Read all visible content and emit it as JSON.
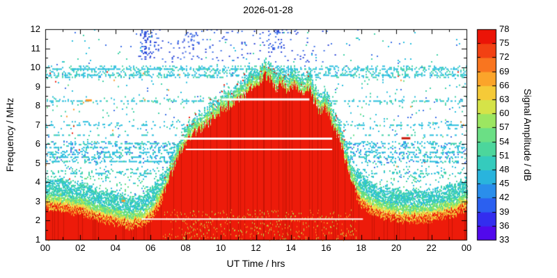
{
  "chart_data": {
    "type": "heatmap",
    "title": "2026-01-28",
    "xlabel": "UT Time / hrs",
    "ylabel": "Frequency / MHz",
    "colorbar_label": "Signal Amplitude / dB",
    "x_range": [
      0,
      24
    ],
    "y_range": [
      1,
      12
    ],
    "grid": false,
    "x_ticks": [
      "00",
      "02",
      "04",
      "06",
      "08",
      "10",
      "12",
      "14",
      "16",
      "18",
      "20",
      "22",
      "00"
    ],
    "y_ticks": [
      1,
      2,
      3,
      4,
      5,
      6,
      7,
      8,
      9,
      10,
      11,
      12
    ],
    "colorbar_range": [
      33,
      78
    ],
    "colorbar_ticks": [
      33,
      36,
      39,
      42,
      45,
      48,
      51,
      54,
      57,
      60,
      63,
      66,
      69,
      72,
      75,
      78
    ],
    "color_scale": [
      {
        "v": 33,
        "c": "#6a00e8"
      },
      {
        "v": 36,
        "c": "#3c10f0"
      },
      {
        "v": 39,
        "c": "#2b46ef"
      },
      {
        "v": 42,
        "c": "#2b77f0"
      },
      {
        "v": 45,
        "c": "#29a3e6"
      },
      {
        "v": 48,
        "c": "#29c3d6"
      },
      {
        "v": 51,
        "c": "#3fd2a8"
      },
      {
        "v": 54,
        "c": "#58da92"
      },
      {
        "v": 57,
        "c": "#7ce379"
      },
      {
        "v": 60,
        "c": "#b8e84c"
      },
      {
        "v": 63,
        "c": "#eede44"
      },
      {
        "v": 66,
        "c": "#fbb92e"
      },
      {
        "v": 69,
        "c": "#fb9226"
      },
      {
        "v": 72,
        "c": "#f75c18"
      },
      {
        "v": 75,
        "c": "#ee2a0e"
      },
      {
        "v": 78,
        "c": "#e90000"
      }
    ],
    "palette": {
      "cyan": "#29bede",
      "teal": "#3fd2a8",
      "green": "#63de83",
      "yellowgreen": "#b8e84c",
      "yellow": "#f0e24a",
      "orange": "#fb9726",
      "red": "#ed1b0a",
      "darkred": "#c81405",
      "blue": "#3f72e8",
      "royal": "#2b46d8",
      "purple": "#7a10e0",
      "white": "#ffffff"
    },
    "envelope": [
      [
        0,
        2.95
      ],
      [
        0.8,
        2.9
      ],
      [
        1.6,
        2.75
      ],
      [
        2.4,
        2.55
      ],
      [
        3.2,
        2.35
      ],
      [
        4,
        2.15
      ],
      [
        4.8,
        2.0
      ],
      [
        5.4,
        2.05
      ],
      [
        6,
        2.4
      ],
      [
        6.5,
        3.1
      ],
      [
        7,
        4.1
      ],
      [
        7.5,
        5.2
      ],
      [
        8,
        6.1
      ],
      [
        8.5,
        6.6
      ],
      [
        9,
        6.95
      ],
      [
        9.5,
        7.25
      ],
      [
        10,
        7.8
      ],
      [
        10.5,
        8.05
      ],
      [
        11,
        8.35
      ],
      [
        11.5,
        8.6
      ],
      [
        12,
        9.1
      ],
      [
        12.4,
        9.55
      ],
      [
        12.8,
        9.4
      ],
      [
        13.1,
        8.8
      ],
      [
        13.4,
        9.15
      ],
      [
        13.8,
        8.75
      ],
      [
        14.2,
        9.2
      ],
      [
        14.6,
        8.6
      ],
      [
        15,
        8.95
      ],
      [
        15.3,
        8.3
      ],
      [
        15.6,
        7.7
      ],
      [
        15.9,
        7.9
      ],
      [
        16.2,
        7.4
      ],
      [
        16.5,
        6.7
      ],
      [
        16.8,
        6.2
      ],
      [
        17,
        5.4
      ],
      [
        17.3,
        4.5
      ],
      [
        17.6,
        3.7
      ],
      [
        18,
        3.05
      ],
      [
        18.6,
        2.7
      ],
      [
        19.4,
        2.45
      ],
      [
        20.4,
        2.3
      ],
      [
        21.4,
        2.3
      ],
      [
        22.4,
        2.45
      ],
      [
        23.2,
        2.6
      ],
      [
        24,
        2.95
      ]
    ],
    "noise_bands": [
      {
        "f0": 1.0,
        "f1": 12.0,
        "t0": 0,
        "t1": 24,
        "density": 0.012,
        "colors": [
          "cyan",
          "blue",
          "teal"
        ]
      },
      {
        "f0": 5.05,
        "f1": 6.15,
        "t0": 0,
        "t1": 24,
        "density": 0.2,
        "colors": [
          "cyan",
          "teal",
          "cyan",
          "blue"
        ]
      },
      {
        "f0": 9.5,
        "f1": 10.1,
        "t0": 0,
        "t1": 24,
        "density": 0.26,
        "colors": [
          "cyan",
          "teal",
          "cyan"
        ]
      },
      {
        "f0": 4.3,
        "f1": 4.7,
        "t0": 0,
        "t1": 24,
        "density": 0.1,
        "colors": [
          "cyan",
          "teal"
        ]
      },
      {
        "f0": 6.8,
        "f1": 7.2,
        "t0": 0,
        "t1": 24,
        "density": 0.07,
        "colors": [
          "cyan"
        ]
      },
      {
        "f0": 8.1,
        "f1": 8.5,
        "t0": 0,
        "t1": 24,
        "density": 0.07,
        "colors": [
          "cyan",
          "teal"
        ]
      },
      {
        "f0": 2.75,
        "f1": 4.3,
        "t0": 0,
        "t1": 24,
        "density": 0.07,
        "colors": [
          "teal",
          "green",
          "cyan"
        ]
      },
      {
        "f0": 6.3,
        "f1": 9.4,
        "t0": 0,
        "t1": 24,
        "density": 0.012,
        "colors": [
          "cyan",
          "teal",
          "green"
        ]
      },
      {
        "f0": 3.2,
        "f1": 5.0,
        "t0": 0,
        "t1": 24,
        "density": 0.03,
        "colors": [
          "cyan",
          "teal"
        ]
      },
      {
        "f0": 10.3,
        "f1": 12.0,
        "t0": 5.3,
        "t1": 16.6,
        "density": 0.045,
        "colors": [
          "blue",
          "royal"
        ]
      },
      {
        "f0": 10.6,
        "f1": 12.0,
        "t0": 5.4,
        "t1": 6.3,
        "density": 0.18,
        "colors": [
          "royal",
          "blue"
        ]
      },
      {
        "f0": 10.5,
        "f1": 11.8,
        "t0": 7.8,
        "t1": 8.5,
        "density": 0.12,
        "colors": [
          "blue",
          "royal"
        ]
      },
      {
        "f0": 10.8,
        "f1": 12.0,
        "t0": 12.7,
        "t1": 13.6,
        "density": 0.12,
        "colors": [
          "blue",
          "royal"
        ]
      },
      {
        "f0": 1.0,
        "f1": 9.8,
        "t0": 0,
        "t1": 24,
        "density": 0.002,
        "colors": [
          "orange",
          "red"
        ]
      }
    ],
    "streaks": [
      {
        "f": 9.95,
        "d": 0.5
      },
      {
        "f": 9.63,
        "d": 0.4
      },
      {
        "f": 8.28,
        "d": 0.3
      },
      {
        "f": 7.02,
        "d": 0.28
      },
      {
        "f": 6.5,
        "d": 0.22
      },
      {
        "f": 6.06,
        "d": 0.45
      },
      {
        "f": 5.85,
        "d": 0.4
      },
      {
        "f": 5.6,
        "d": 0.5
      },
      {
        "f": 5.35,
        "d": 0.45
      },
      {
        "f": 5.12,
        "d": 0.5
      },
      {
        "f": 4.5,
        "d": 0.32
      },
      {
        "f": 3.08,
        "d": 0.3
      },
      {
        "f": 2.62,
        "d": 0.25
      }
    ],
    "vertical_streaks": [
      {
        "t": 5.65,
        "f0": 10.4,
        "f1": 12.0,
        "color": "royal",
        "density": 0.7
      }
    ],
    "white_lines": [
      {
        "f": 8.35,
        "t0": 10.05,
        "t1": 15.05,
        "w": 3
      },
      {
        "f": 6.3,
        "t0": 7.55,
        "t1": 16.35,
        "w": 3
      },
      {
        "f": 5.72,
        "t0": 8.0,
        "t1": 16.35,
        "w": 2
      },
      {
        "f": 2.08,
        "t0": 5.5,
        "t1": 18.1,
        "w": 2
      }
    ],
    "red_dashes": [
      {
        "f": 6.32,
        "t0": 20.3,
        "t1": 20.8,
        "color": "darkred"
      },
      {
        "f": 8.3,
        "t0": 2.3,
        "t1": 2.65,
        "color": "orange"
      },
      {
        "f": 3.05,
        "t0": 4.35,
        "t1": 4.55,
        "color": "orange"
      }
    ]
  }
}
